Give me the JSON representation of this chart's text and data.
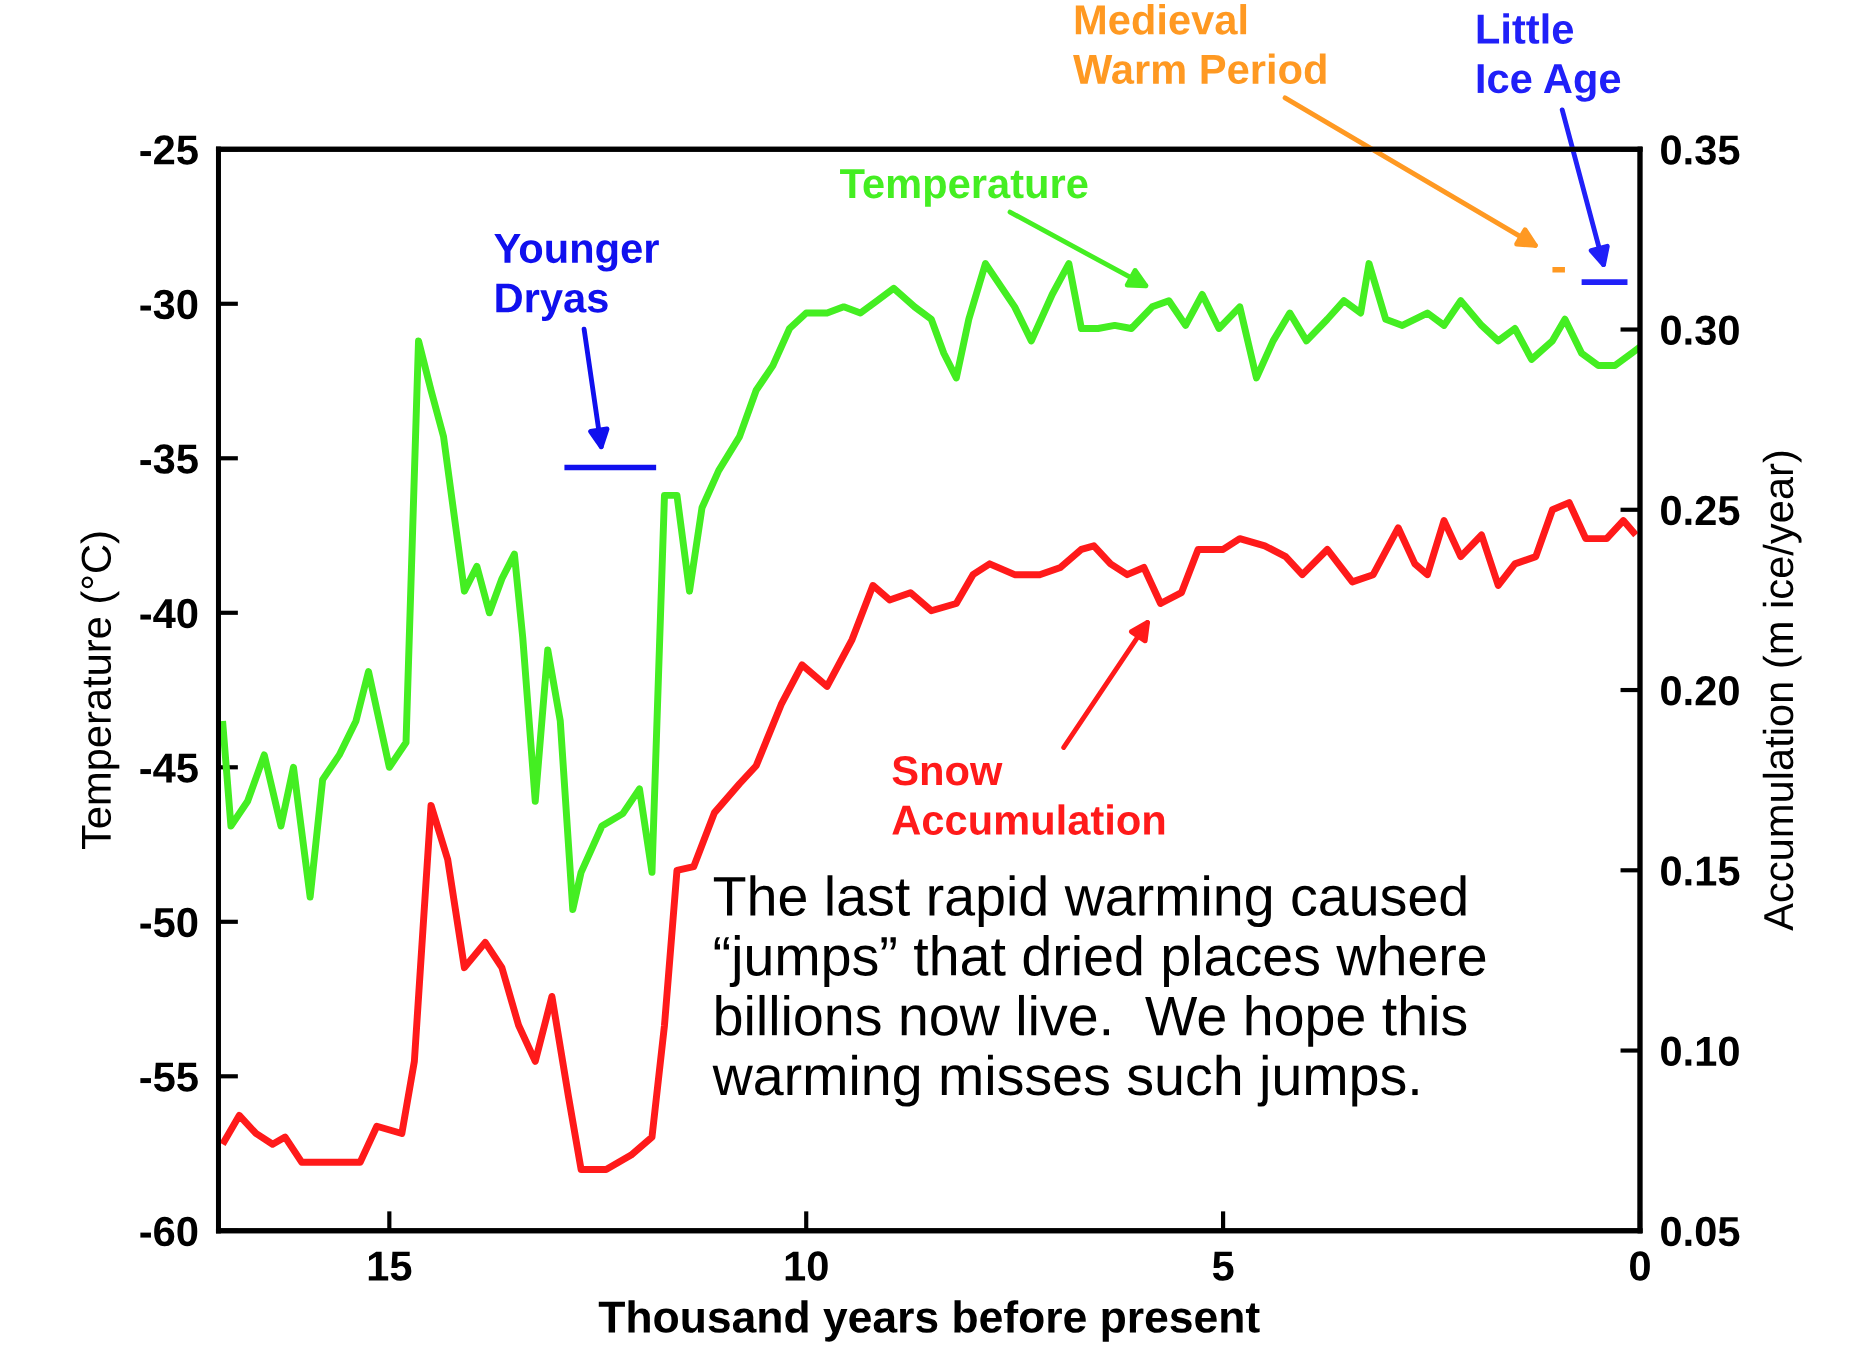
{
  "chart_data": {
    "type": "line",
    "xlabel": "Thousand years before present",
    "ylabel": "Temperature (°C)",
    "y2label": "Accumulation (m ice/year)",
    "xlim": [
      17.05,
      0
    ],
    "xticks": [
      15,
      10,
      5,
      0
    ],
    "ylim": [
      -60,
      -25
    ],
    "yticks": [
      -60,
      -55,
      -50,
      -45,
      -40,
      -35,
      -30,
      -25
    ],
    "y2lim": [
      0.05,
      0.35
    ],
    "y2ticks": [
      0.05,
      {
        "value": 0.1,
        "label": "0.10"
      },
      0.15,
      {
        "value": 0.2,
        "label": "0.20"
      },
      0.25,
      {
        "value": 0.3,
        "label": "0.30"
      },
      0.35
    ],
    "grid": false,
    "legend": false,
    "line_style": "solid",
    "marker": "none",
    "series": [
      {
        "name": "Temperature",
        "color": "#44ee22",
        "x": [
          17.0,
          16.9,
          16.7,
          16.5,
          16.3,
          16.15,
          15.95,
          15.8,
          15.6,
          15.4,
          15.25,
          15.0,
          14.8,
          14.65,
          14.5,
          14.35,
          14.2,
          14.1,
          13.95,
          13.8,
          13.65,
          13.5,
          13.4,
          13.25,
          13.1,
          12.95,
          12.8,
          12.7,
          12.45,
          12.2,
          12.0,
          11.85,
          11.7,
          11.55,
          11.4,
          11.25,
          11.05,
          10.8,
          10.6,
          10.4,
          10.2,
          10.0,
          9.75,
          9.55,
          9.35,
          9.15,
          8.95,
          8.7,
          8.5,
          8.35,
          8.2,
          8.05,
          7.85,
          7.7,
          7.5,
          7.3,
          7.05,
          6.85,
          6.7,
          6.5,
          6.3,
          6.1,
          5.85,
          5.65,
          5.45,
          5.25,
          5.05,
          4.8,
          4.6,
          4.4,
          4.2,
          4.0,
          3.75,
          3.55,
          3.35,
          3.25,
          3.05,
          2.85,
          2.55,
          2.35,
          2.15,
          1.9,
          1.7,
          1.5,
          1.3,
          1.05,
          0.9,
          0.7,
          0.5,
          0.3,
          0.1,
          0
        ],
        "values": [
          -43.5,
          -46.9,
          -46.1,
          -44.6,
          -46.9,
          -45.0,
          -49.2,
          -45.4,
          -44.6,
          -43.5,
          -41.9,
          -45.0,
          -44.2,
          -31.2,
          -32.8,
          -34.3,
          -37.3,
          -39.3,
          -38.5,
          -40.0,
          -38.9,
          -38.1,
          -40.8,
          -46.1,
          -41.2,
          -43.5,
          -49.6,
          -48.4,
          -46.9,
          -46.5,
          -45.7,
          -48.4,
          -36.2,
          -36.2,
          -39.3,
          -36.6,
          -35.4,
          -34.3,
          -32.8,
          -32.0,
          -30.8,
          -30.3,
          -30.3,
          -30.1,
          -30.3,
          -29.9,
          -29.5,
          -30.1,
          -30.5,
          -31.6,
          -32.4,
          -30.5,
          -28.7,
          -29.3,
          -30.1,
          -31.2,
          -29.7,
          -28.7,
          -30.8,
          -30.8,
          -30.7,
          -30.8,
          -30.1,
          -29.9,
          -30.7,
          -29.7,
          -30.8,
          -30.1,
          -32.4,
          -31.2,
          -30.3,
          -31.2,
          -30.5,
          -29.9,
          -30.3,
          -28.7,
          -30.5,
          -30.7,
          -30.3,
          -30.7,
          -29.9,
          -30.7,
          -31.2,
          -30.8,
          -31.8,
          -31.2,
          -30.5,
          -31.6,
          -32.0,
          -32.0,
          -31.6,
          -31.4
        ]
      },
      {
        "name": "Snow\nAccumulation",
        "color": "#ff1a1a",
        "axis": "y2",
        "x": [
          17.0,
          16.8,
          16.6,
          16.4,
          16.25,
          16.05,
          15.75,
          15.6,
          15.35,
          15.15,
          14.85,
          14.7,
          14.5,
          14.3,
          14.1,
          13.85,
          13.65,
          13.45,
          13.25,
          13.05,
          12.85,
          12.7,
          12.4,
          12.1,
          11.85,
          11.7,
          11.55,
          11.35,
          11.1,
          10.8,
          10.6,
          10.3,
          10.05,
          9.75,
          9.45,
          9.2,
          9.0,
          8.75,
          8.5,
          8.2,
          8.0,
          7.8,
          7.5,
          7.2,
          6.95,
          6.7,
          6.55,
          6.35,
          6.15,
          5.95,
          5.75,
          5.5,
          5.3,
          5.0,
          4.8,
          4.5,
          4.25,
          4.05,
          3.75,
          3.45,
          3.2,
          2.9,
          2.7,
          2.55,
          2.35,
          2.15,
          1.9,
          1.7,
          1.5,
          1.25,
          1.05,
          0.85,
          0.65,
          0.4,
          0.2,
          0.05
        ],
        "values": [
          0.074,
          0.082,
          0.077,
          0.074,
          0.076,
          0.069,
          0.069,
          0.069,
          0.069,
          0.079,
          0.077,
          0.097,
          0.168,
          0.153,
          0.123,
          0.13,
          0.123,
          0.107,
          0.097,
          0.115,
          0.087,
          0.067,
          0.067,
          0.071,
          0.076,
          0.107,
          0.15,
          0.151,
          0.166,
          0.174,
          0.179,
          0.196,
          0.207,
          0.201,
          0.214,
          0.229,
          0.225,
          0.227,
          0.222,
          0.224,
          0.232,
          0.235,
          0.232,
          0.232,
          0.234,
          0.239,
          0.24,
          0.235,
          0.232,
          0.234,
          0.224,
          0.227,
          0.239,
          0.239,
          0.242,
          0.24,
          0.237,
          0.232,
          0.239,
          0.23,
          0.232,
          0.245,
          0.235,
          0.232,
          0.247,
          0.237,
          0.243,
          0.229,
          0.235,
          0.237,
          0.25,
          0.252,
          0.242,
          0.242,
          0.247,
          0.243
        ]
      },
      {
        "name": "Younger\nDryas",
        "color": "#1010ee",
        "x": [
          12.9,
          11.8
        ],
        "values": [
          -35.3,
          -35.3
        ]
      },
      {
        "name": "Medieval\nWarm Period",
        "color": "#ff9922",
        "x": [
          1.05,
          0.9
        ],
        "values": [
          -28.9,
          -28.9
        ]
      },
      {
        "name": "Little\nIce Age",
        "color": "#2020f8",
        "x": [
          0.7,
          0.15
        ],
        "values": [
          -29.3,
          -29.3
        ]
      }
    ],
    "annotations": [
      "The last rapid warming caused “jumps” that dried places where billions now live.  We hope this warming misses such jumps."
    ]
  }
}
